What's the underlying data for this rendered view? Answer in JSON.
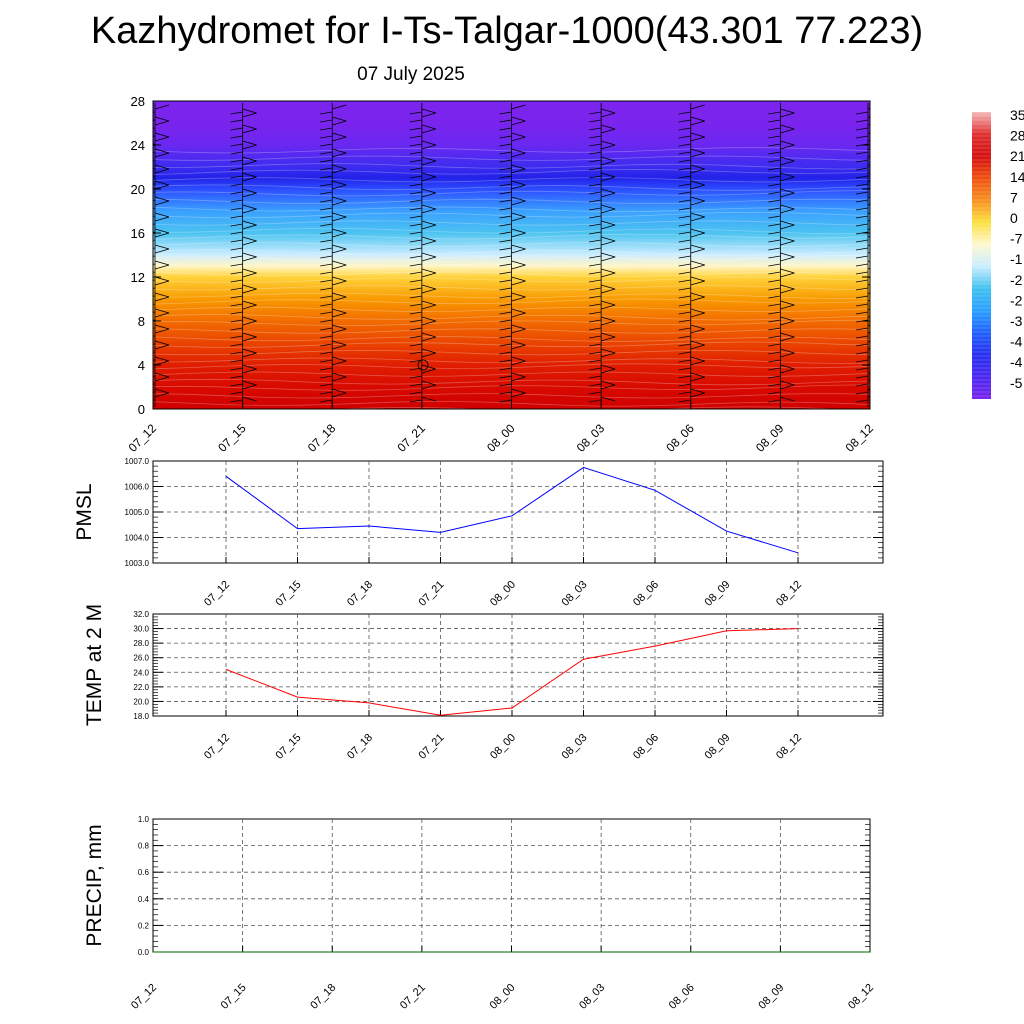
{
  "title": "Kazhydromet for I-Ts-Talgar-1000(43.301 77.223)",
  "date": "07 July 2025",
  "colors": {
    "pmsl_line": "#0000ff",
    "temp_line": "#ff0000",
    "precip_line": "#006400",
    "grid": "#555555"
  },
  "chart_data": [
    {
      "type": "heatmap",
      "name_hint": "vertical temperature cross-section with wind barbs",
      "x_ticks": [
        "07_12",
        "07_15",
        "07_18",
        "07_21",
        "08_00",
        "08_03",
        "08_06",
        "08_09",
        "08_12"
      ],
      "ylim": [
        0,
        28
      ],
      "y_ticks": [
        "0",
        "4",
        "8",
        "12",
        "16",
        "20",
        "24",
        "28"
      ],
      "levels": [
        0,
        2,
        4,
        6,
        8,
        10,
        12,
        13,
        14,
        16,
        18,
        20,
        21,
        22,
        24,
        26,
        28
      ],
      "level_colors": [
        "#d00000",
        "#d80a00",
        "#e01e00",
        "#ea4400",
        "#f26c00",
        "#f89a00",
        "#ffd23a",
        "#fff6c8",
        "#cfeeff",
        "#4cc3f0",
        "#3aa0ff",
        "#2c4cff",
        "#2222e8",
        "#3c2cf0",
        "#6a28f0",
        "#7a24ee",
        "#7a24ee"
      ],
      "colorbar_labels": [
        "35",
        "28",
        "21",
        "14",
        "7",
        "0",
        "-7",
        "-1",
        "-2",
        "-2",
        "-3",
        "-4",
        "-4",
        "-5"
      ],
      "colorbar_colors": [
        "#f4b8b8",
        "#e23030",
        "#d41010",
        "#f05010",
        "#f89020",
        "#fce040",
        "#fff8d0",
        "#c8eeff",
        "#40c0f0",
        "#2aa0ff",
        "#2060ff",
        "#2830f0",
        "#4a28f0",
        "#7a24ee"
      ]
    },
    {
      "type": "line",
      "ylabel": "PMSL",
      "ylim": [
        1003.0,
        1007.0
      ],
      "y_ticks": [
        "1003.0",
        "1004.0",
        "1005.0",
        "1006.0",
        "1007.0"
      ],
      "x_ticks": [
        "07_12",
        "07_15",
        "07_18",
        "07_21",
        "08_00",
        "08_03",
        "08_06",
        "08_09",
        "08_12"
      ],
      "values": [
        1006.4,
        1004.35,
        1004.45,
        1004.2,
        1004.85,
        1006.75,
        1005.85,
        1004.25,
        1003.4
      ]
    },
    {
      "type": "line",
      "ylabel": "TEMP at 2 M",
      "ylim": [
        18.0,
        32.0
      ],
      "y_ticks": [
        "18.0",
        "20.0",
        "22.0",
        "24.0",
        "26.0",
        "28.0",
        "30.0",
        "32.0"
      ],
      "x_ticks": [
        "07_12",
        "07_15",
        "07_18",
        "07_21",
        "08_00",
        "08_03",
        "08_06",
        "08_09",
        "08_12"
      ],
      "values": [
        24.4,
        20.6,
        19.8,
        18.1,
        19.1,
        25.8,
        27.6,
        29.7,
        30.0
      ]
    },
    {
      "type": "line",
      "ylabel": "PRECIP, mm",
      "ylim": [
        0.0,
        1.0
      ],
      "y_ticks": [
        "0.0",
        "0.2",
        "0.4",
        "0.6",
        "0.8",
        "1.0"
      ],
      "x_ticks": [
        "07_12",
        "07_15",
        "07_18",
        "07_21",
        "08_00",
        "08_03",
        "08_06",
        "08_09",
        "08_12"
      ],
      "values": [
        0,
        0,
        0,
        0,
        0,
        0,
        0,
        0,
        0
      ]
    }
  ]
}
